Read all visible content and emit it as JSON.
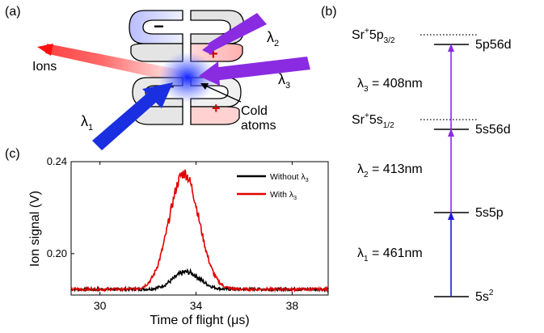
{
  "panel_labels": {
    "a": "(a)",
    "b": "(b)",
    "c": "(c)"
  },
  "panel_a": {
    "lambda1": "λ",
    "lambda1_sub": "1",
    "lambda2": "λ",
    "lambda2_sub": "2",
    "lambda3": "λ",
    "lambda3_sub": "3",
    "ions_label": "Ions",
    "cold_atoms_line1": "Cold",
    "cold_atoms_line2": "atoms",
    "minus": "−",
    "plus": "+",
    "colors": {
      "lambda1": "#1a2fe0",
      "lambda2": "#8a2be2",
      "lambda3": "#8a2be2",
      "ions": "#ff2020",
      "atoms": "#3355ff"
    }
  },
  "panel_b": {
    "ion_level_upper_main": "Sr",
    "ion_level_upper_sup": "+",
    "ion_level_upper_rest": "5p",
    "ion_level_upper_sub": "3/2",
    "ion_level_lower_main": "Sr",
    "ion_level_lower_sup": "+",
    "ion_level_lower_rest": "5s",
    "ion_level_lower_sub": "1/2",
    "level_5p56d": "5p56d",
    "level_5s56d": "5s56d",
    "level_5s5p": "5s5p",
    "level_ground_main": "5s",
    "level_ground_sup": "2",
    "transition_3_sym": "λ",
    "transition_3_sub": "3",
    "transition_3_val": " = 408nm",
    "transition_2_sym": "λ",
    "transition_2_sub": "2",
    "transition_2_val": " = 413nm",
    "transition_1_sym": "λ",
    "transition_1_sub": "1",
    "transition_1_val": " = 461nm",
    "colors": {
      "blue": "#1a1ae0",
      "purple": "#8a2be2"
    }
  },
  "chart_data": {
    "type": "line",
    "xlabel": "Time of flight (μs)",
    "ylabel": "Ion signal (V)",
    "xlim": [
      28.8,
      39.5
    ],
    "ylim": [
      0.182,
      0.24
    ],
    "xticks": [
      30,
      34,
      38
    ],
    "xtick_labels": [
      "30",
      "34",
      "38"
    ],
    "yticks": [
      0.2,
      0.24
    ],
    "ytick_labels": [
      "0.20",
      "0.24"
    ],
    "legend_position": "top-right",
    "series": [
      {
        "name": "Without λ3",
        "legend_main": "Without λ",
        "legend_sub": "3",
        "color": "#000000",
        "baseline": 0.1845,
        "peak_x": 33.6,
        "peak_y": 0.192,
        "sigma": 0.55
      },
      {
        "name": "With λ3",
        "legend_main": "With λ",
        "legend_sub": "3",
        "color": "#e00000",
        "baseline": 0.1845,
        "peak_x": 33.5,
        "peak_y": 0.235,
        "sigma": 0.62
      }
    ]
  }
}
